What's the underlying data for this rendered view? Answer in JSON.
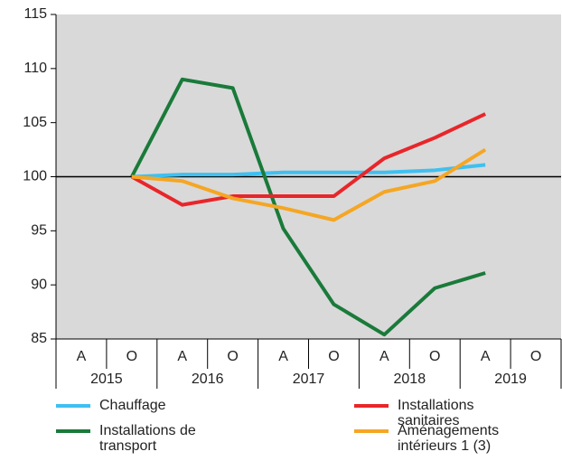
{
  "chart_data": {
    "type": "line",
    "categories": [
      "A",
      "O",
      "A",
      "O",
      "A",
      "O",
      "A",
      "O",
      "A",
      "O"
    ],
    "x_groups": [
      "2015",
      "2016",
      "2017",
      "2018",
      "2019"
    ],
    "ylim": [
      85,
      115
    ],
    "yticks": [
      85,
      90,
      95,
      100,
      105,
      110,
      115
    ],
    "reference_line": 100,
    "grid": false,
    "series": [
      {
        "name": "Chauffage",
        "color": "#3fc0f0",
        "values": [
          null,
          100,
          100.2,
          100.2,
          100.4,
          100.4,
          100.4,
          100.6,
          101.1,
          null
        ]
      },
      {
        "name": "Installations de transport",
        "color": "#1a7a3a",
        "values": [
          null,
          100,
          109,
          108.2,
          95.2,
          88.2,
          85.4,
          89.7,
          91.1,
          null
        ]
      },
      {
        "name": "Installations sanitaires",
        "color": "#e8262a",
        "values": [
          null,
          100,
          97.4,
          98.2,
          98.2,
          98.2,
          101.7,
          103.6,
          105.8,
          null
        ]
      },
      {
        "name": "Aménagements intérieurs 1 (3)",
        "color": "#f5a623",
        "values": [
          null,
          100,
          99.6,
          98,
          97.1,
          96,
          98.6,
          99.6,
          102.5,
          null
        ]
      }
    ]
  }
}
